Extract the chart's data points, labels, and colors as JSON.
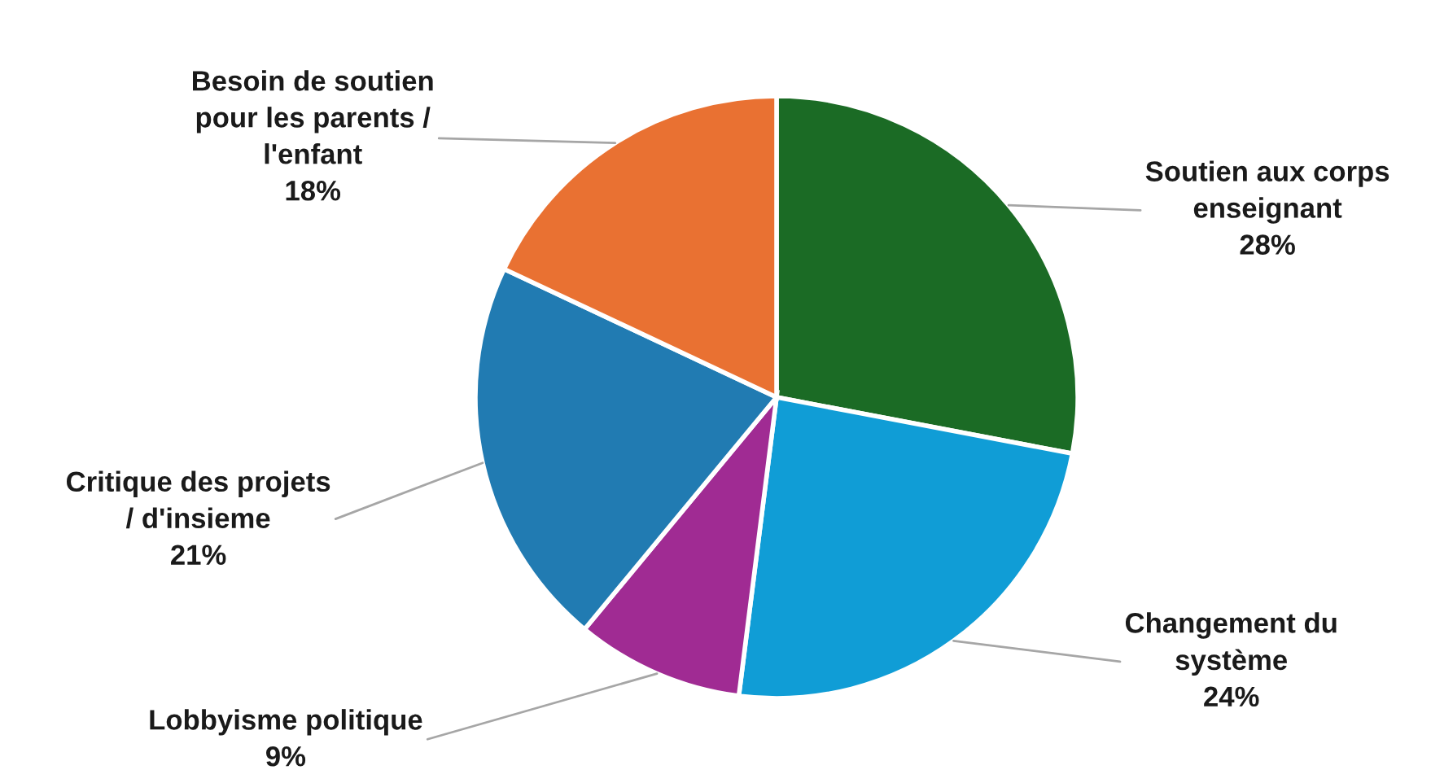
{
  "chart_data": {
    "type": "pie",
    "categories": [
      "Soutien aux corps\nenseignant",
      "Changement du\nsystème",
      "Lobbyisme politique",
      "Critique des projets\n/ d'insieme",
      "Besoin de soutien\npour les parents /\nl'enfant"
    ],
    "values": [
      28,
      24,
      9,
      21,
      18
    ],
    "value_labels": [
      "28%",
      "24%",
      "9%",
      "21%",
      "18%"
    ],
    "colors": [
      "#1b6b25",
      "#109dd6",
      "#a02b93",
      "#217bb2",
      "#e97132"
    ],
    "legend": false
  }
}
